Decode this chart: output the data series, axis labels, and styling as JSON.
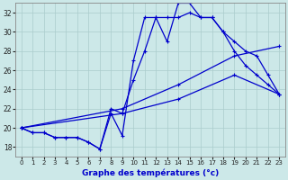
{
  "xlabel": "Graphe des températures (°c)",
  "xlim": [
    -0.5,
    23.5
  ],
  "ylim": [
    17,
    33
  ],
  "yticks": [
    18,
    20,
    22,
    24,
    26,
    28,
    30,
    32
  ],
  "xticks": [
    0,
    1,
    2,
    3,
    4,
    5,
    6,
    7,
    8,
    9,
    10,
    11,
    12,
    13,
    14,
    15,
    16,
    17,
    18,
    19,
    20,
    21,
    22,
    23
  ],
  "bg_color": "#cce8e8",
  "grid_color": "#aacccc",
  "line_color": "#0000cc",
  "line1_x": [
    0,
    1,
    2,
    3,
    4,
    5,
    6,
    7,
    8,
    9,
    10,
    11,
    12,
    13,
    14,
    15,
    16,
    17,
    18,
    19,
    20,
    21,
    22,
    23
  ],
  "line1_y": [
    20.0,
    19.5,
    19.5,
    19.0,
    19.0,
    19.0,
    18.5,
    17.8,
    21.5,
    19.2,
    27.0,
    31.5,
    31.5,
    29.0,
    33.0,
    33.0,
    31.5,
    31.5,
    30.0,
    28.0,
    26.5,
    25.5,
    24.5,
    23.5
  ],
  "line2_x": [
    0,
    1,
    2,
    3,
    4,
    5,
    6,
    7,
    8,
    9,
    10,
    11,
    12,
    13,
    14,
    15,
    16,
    17,
    18,
    19,
    20,
    21,
    22,
    23
  ],
  "line2_y": [
    20.0,
    19.5,
    19.5,
    19.0,
    19.0,
    19.0,
    18.5,
    17.8,
    22.0,
    21.5,
    25.0,
    28.0,
    31.5,
    31.5,
    31.5,
    32.0,
    31.5,
    31.5,
    30.0,
    29.0,
    28.0,
    27.5,
    25.5,
    23.5
  ],
  "line3_x": [
    0,
    9,
    14,
    19,
    23
  ],
  "line3_y": [
    20.0,
    22.0,
    24.5,
    27.5,
    28.5
  ],
  "line4_x": [
    0,
    9,
    14,
    19,
    23
  ],
  "line4_y": [
    20.0,
    21.5,
    23.0,
    25.5,
    23.5
  ]
}
